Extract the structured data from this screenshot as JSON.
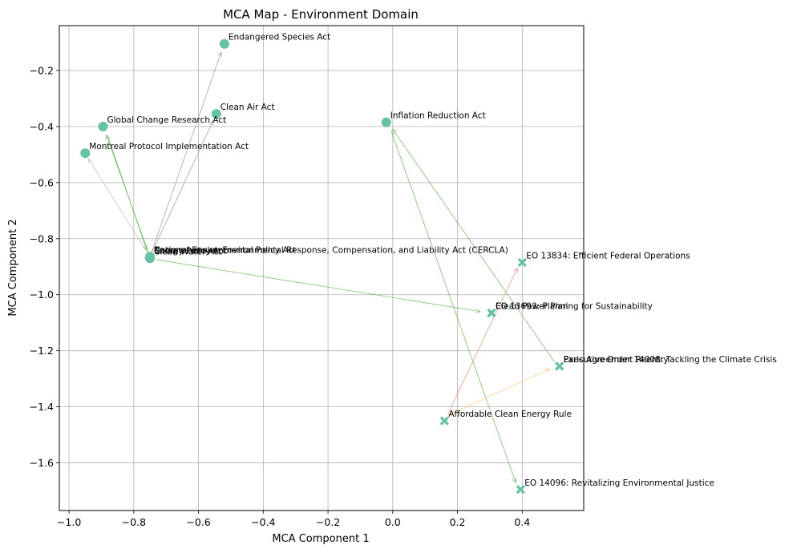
{
  "chart_data": {
    "type": "scatter",
    "title": "MCA Map - Environment Domain",
    "xlabel": "MCA Component 1",
    "ylabel": "MCA Component 2",
    "xlim": [
      -1.03,
      0.59
    ],
    "ylim": [
      -1.77,
      -0.04
    ],
    "xticks": [
      -1.0,
      -0.8,
      -0.6,
      -0.4,
      -0.2,
      0.0,
      0.2,
      0.4
    ],
    "xtick_labels": [
      "−1.0",
      "−0.8",
      "−0.6",
      "−0.4",
      "−0.2",
      "0.0",
      "0.2",
      "0.4"
    ],
    "yticks": [
      -0.2,
      -0.4,
      -0.6,
      -0.8,
      -1.0,
      -1.2,
      -1.4,
      -1.6
    ],
    "ytick_labels": [
      "−0.2",
      "−0.4",
      "−0.6",
      "−0.8",
      "−1.0",
      "−1.2",
      "−1.4",
      "−1.6"
    ],
    "grid": true,
    "marker_color": "#66c2a5",
    "series": [
      {
        "marker": "circle",
        "points": [
          {
            "label": "Endangered Species Act",
            "x": -0.52,
            "y": -0.105
          },
          {
            "label": "Clean Air Act",
            "x": -0.545,
            "y": -0.355
          },
          {
            "label": "Global Change Research Act",
            "x": -0.895,
            "y": -0.4
          },
          {
            "label": "Inflation Reduction Act",
            "x": -0.02,
            "y": -0.385
          },
          {
            "label": "Montreal Protocol Implementation Act",
            "x": -0.95,
            "y": -0.495
          },
          {
            "label": "National Environmental Policy Act",
            "x": -0.75,
            "y": -0.865
          },
          {
            "label": "Comprehensive Environmental Response, Compensation, and Liability Act (CERCLA)",
            "x": -0.75,
            "y": -0.865
          },
          {
            "label": "Clean Water Act",
            "x": -0.75,
            "y": -0.87
          },
          {
            "label": "Energy Policy Act",
            "x": -0.75,
            "y": -0.868
          }
        ]
      },
      {
        "marker": "x",
        "points": [
          {
            "label": "EO 13834: Efficient Federal Operations",
            "x": 0.4,
            "y": -0.885
          },
          {
            "label": "EO 13693: Planning for Sustainability",
            "x": 0.305,
            "y": -1.065
          },
          {
            "label": "Clean Power Plan",
            "x": 0.305,
            "y": -1.065
          },
          {
            "label": "Paris Agreement Reentry",
            "x": 0.515,
            "y": -1.255
          },
          {
            "label": "Executive Order 14008: Tackling the Climate Crisis",
            "x": 0.515,
            "y": -1.255
          },
          {
            "label": "Affordable Clean Energy Rule",
            "x": 0.16,
            "y": -1.45
          },
          {
            "label": "EO 14096: Revitalizing Environmental Justice",
            "x": 0.395,
            "y": -1.695
          }
        ]
      }
    ],
    "arrows": [
      {
        "from": [
          -0.75,
          -0.865
        ],
        "to": [
          -0.53,
          -0.135
        ],
        "color": "#999999"
      },
      {
        "from": [
          -0.75,
          -0.865
        ],
        "to": [
          -0.555,
          -0.38
        ],
        "color": "#999999"
      },
      {
        "from": [
          -0.75,
          -0.865
        ],
        "to": [
          -0.94,
          -0.515
        ],
        "color": "#bbbbbb"
      },
      {
        "from": [
          -0.75,
          -0.865
        ],
        "to": [
          -0.885,
          -0.43
        ],
        "color": "#66bb55"
      },
      {
        "from": [
          -0.88,
          -0.435
        ],
        "to": [
          -0.76,
          -0.84
        ],
        "color": "#66bb55"
      },
      {
        "from": [
          -0.73,
          -0.875
        ],
        "to": [
          0.27,
          -1.06
        ],
        "color": "#66bb55"
      },
      {
        "from": [
          -0.005,
          -0.415
        ],
        "to": [
          0.38,
          -1.67
        ],
        "color": "#66bb55"
      },
      {
        "from": [
          0.5,
          -1.24
        ],
        "to": [
          0.0,
          -0.41
        ],
        "color": "#66bb55"
      },
      {
        "from": [
          0.17,
          -1.425
        ],
        "to": [
          0.385,
          -0.905
        ],
        "color": "#f28e77"
      },
      {
        "from": [
          0.17,
          -1.43
        ],
        "to": [
          0.485,
          -1.265
        ],
        "color": "#ffcc77"
      }
    ]
  }
}
